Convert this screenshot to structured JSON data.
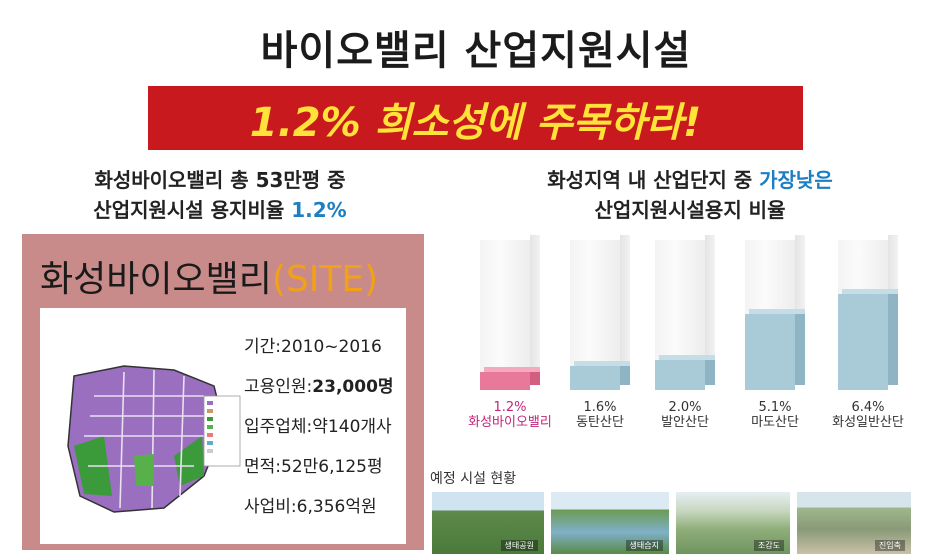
{
  "title": "바이오밸리 산업지원시설",
  "banner": "1.2% 희소성에 주목하라!",
  "left_subtitle": {
    "line1": "화성바이오밸리 총 53만평 중",
    "line2_prefix": "산업지원시설 용지비율 ",
    "line2_highlight": "1.2%"
  },
  "right_subtitle": {
    "line1_prefix": "화성지역 내 산업단지 중 ",
    "line1_highlight": "가장낮은",
    "line2": "산업지원시설용지 비율"
  },
  "site": {
    "title": "화성바이오밸리",
    "title_suffix": "(SITE)",
    "info": [
      {
        "label": "기간:",
        "value": "2010~2016"
      },
      {
        "label": "고용인원:",
        "value": "23,000명"
      },
      {
        "label": "입주업체:",
        "value": "약140개사"
      },
      {
        "label": "면적:",
        "value": "52만6,125평"
      },
      {
        "label": "사업비:",
        "value": "6,356억원"
      }
    ]
  },
  "chart_data": {
    "type": "bar",
    "categories": [
      "화성바이오밸리",
      "동탄산단",
      "발안산단",
      "마도산단",
      "화성일반산단"
    ],
    "values": [
      1.2,
      1.6,
      2.0,
      5.1,
      6.4
    ],
    "value_labels": [
      "1.2%",
      "1.6%",
      "2.0%",
      "5.1%",
      "6.4%"
    ],
    "ylim": [
      0,
      10
    ],
    "colors": {
      "highlight": "#e8799a",
      "normal": "#a9cbd8"
    }
  },
  "photos": {
    "label": "예정 시설 현황",
    "items": [
      {
        "caption": "생태공원"
      },
      {
        "caption": "생태습지"
      },
      {
        "caption": "조감도"
      },
      {
        "caption": "진입축"
      }
    ]
  }
}
